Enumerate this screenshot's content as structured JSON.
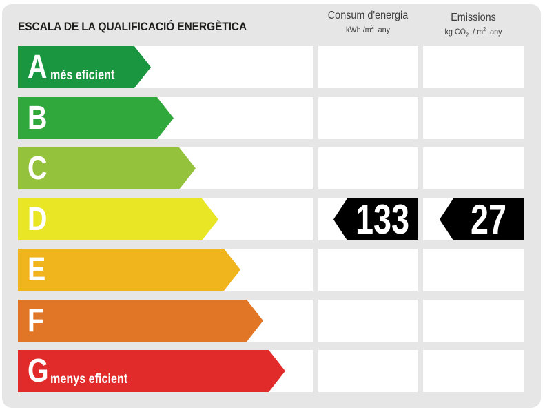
{
  "title": "ESCALA DE LA QUALIFICACIÓ ENERGÈTICA",
  "columns": {
    "energy": {
      "heading": "Consum d'energia",
      "unit_prefix": "kWh /m",
      "unit_exp": "2",
      "unit_suffix": "any"
    },
    "emissions": {
      "heading": "Emissions",
      "unit_a": "kg CO",
      "unit_sub": "2",
      "unit_b": "/ m",
      "unit_exp": "2",
      "unit_suffix": "any"
    }
  },
  "ratings": [
    {
      "letter": "A",
      "caption": "més eficient",
      "color": "#1a9640"
    },
    {
      "letter": "B",
      "caption": "",
      "color": "#31a83c"
    },
    {
      "letter": "C",
      "caption": "",
      "color": "#95c23d"
    },
    {
      "letter": "D",
      "caption": "",
      "color": "#e8e625"
    },
    {
      "letter": "E",
      "caption": "",
      "color": "#f0b41c"
    },
    {
      "letter": "F",
      "caption": "",
      "color": "#e17726"
    },
    {
      "letter": "G",
      "caption": "menys eficient",
      "color": "#e12b2b"
    }
  ],
  "result": {
    "rating": "D",
    "energy_value": "133",
    "emissions_value": "27",
    "pointer_color": "#000000"
  }
}
